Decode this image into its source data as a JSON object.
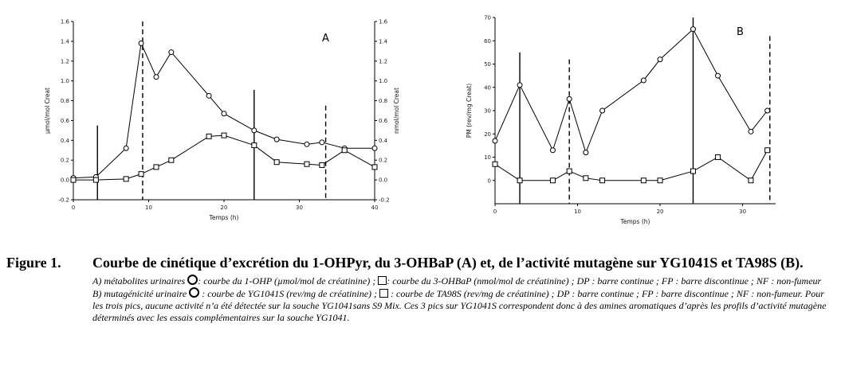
{
  "chart_data": [
    {
      "type": "line",
      "panel_label": "A",
      "xlabel": "Temps (h)",
      "ylabel_left": "µmol/mol Creat",
      "ylabel_right": "nmol/mol Creat",
      "xlim": [
        0,
        40
      ],
      "ylim": [
        -0.2,
        1.6
      ],
      "x_ticks": [
        "0",
        "10",
        "20",
        "30",
        "40"
      ],
      "y_ticks": [
        "-0.2",
        "0.0",
        "0.2",
        "0.4",
        "0.6",
        "0.8",
        "1.0",
        "1.2",
        "1.4",
        "1.6"
      ],
      "series": [
        {
          "marker": "circle",
          "x": [
            0,
            3,
            7,
            9,
            11,
            13,
            18,
            20,
            24,
            27,
            31,
            33,
            36,
            40
          ],
          "y": [
            0.02,
            0.03,
            0.32,
            1.38,
            1.04,
            1.29,
            0.85,
            0.67,
            0.5,
            0.41,
            0.36,
            0.38,
            0.32,
            0.32
          ]
        },
        {
          "marker": "square",
          "x": [
            0,
            3,
            7,
            9,
            11,
            13,
            18,
            20,
            24,
            27,
            31,
            33,
            36,
            40
          ],
          "y": [
            0.0,
            0.0,
            0.01,
            0.06,
            0.13,
            0.2,
            0.44,
            0.45,
            0.35,
            0.18,
            0.16,
            0.15,
            0.3,
            0.13
          ]
        }
      ],
      "vertical_lines": [
        {
          "x": 3.2,
          "style": "solid",
          "top": 0.55
        },
        {
          "x": 9.2,
          "style": "dashed",
          "top": 1.6
        },
        {
          "x": 24,
          "style": "solid",
          "top": 0.91
        },
        {
          "x": 33.5,
          "style": "dashed",
          "top": 0.75
        }
      ]
    },
    {
      "type": "line",
      "panel_label": "B",
      "xlabel": "Temps (h)",
      "ylabel": "PM (rev/mg Creat)",
      "xlim": [
        0,
        34
      ],
      "ylim": [
        -10,
        70
      ],
      "x_ticks": [
        "0",
        "10",
        "20",
        "30"
      ],
      "y_ticks": [
        "0",
        "10",
        "20",
        "30",
        "40",
        "50",
        "60",
        "70"
      ],
      "series": [
        {
          "marker": "circle",
          "x": [
            0,
            3,
            7,
            9,
            11,
            13,
            18,
            20,
            24,
            27,
            31,
            33
          ],
          "y": [
            17,
            41,
            13,
            35,
            12,
            30,
            43,
            52,
            65,
            45,
            21,
            30
          ]
        },
        {
          "marker": "square",
          "x": [
            0,
            3,
            7,
            9,
            11,
            13,
            18,
            20,
            24,
            27,
            31,
            33
          ],
          "y": [
            7,
            0,
            0,
            4,
            1,
            0,
            0,
            0,
            4,
            10,
            0,
            13
          ]
        }
      ],
      "vertical_lines": [
        {
          "x": 3,
          "style": "solid",
          "top": 55
        },
        {
          "x": 9,
          "style": "dashed",
          "top": 52
        },
        {
          "x": 24,
          "style": "solid",
          "top": 70
        },
        {
          "x": 33.3,
          "style": "dashed",
          "top": 62
        }
      ]
    }
  ],
  "caption": {
    "figure_number": "Figure 1.",
    "title": "Courbe de cinétique d’excrétion du 1-OHPyr, du 3-OHBaP (A) et, de l’activité mutagène sur YG1041S et TA98S (B).",
    "line_a_1": "A) métabolites urinaires ",
    "line_a_2": ": courbe du 1-OHP (µmol/mol de créatinine) ; ",
    "line_a_3": ": courbe du 3-OHBaP (nmol/mol de créatinine) ; DP : barre continue ; FP : barre discontinue ; NF : non-fumeur",
    "line_b_1": "B) mutagénicité urinaire ",
    "line_b_2": " : courbe de YG1041S (rev/mg de créatinine) ; ",
    "line_b_3": " : courbe de TA98S (rev/mg de créatinine) ; DP : barre continue ; FP : barre discontinue ; NF : non-fumeur. Pour les trois pics, aucune activité n’a été détectée sur la souche YG1041sans S9 Mix. Ces 3 pics sur YG1041S correspondent donc à des amines aromatiques d’après les profils d’activité mutagène déterminés avec les essais complémentaires sur la souche YG1041."
  }
}
